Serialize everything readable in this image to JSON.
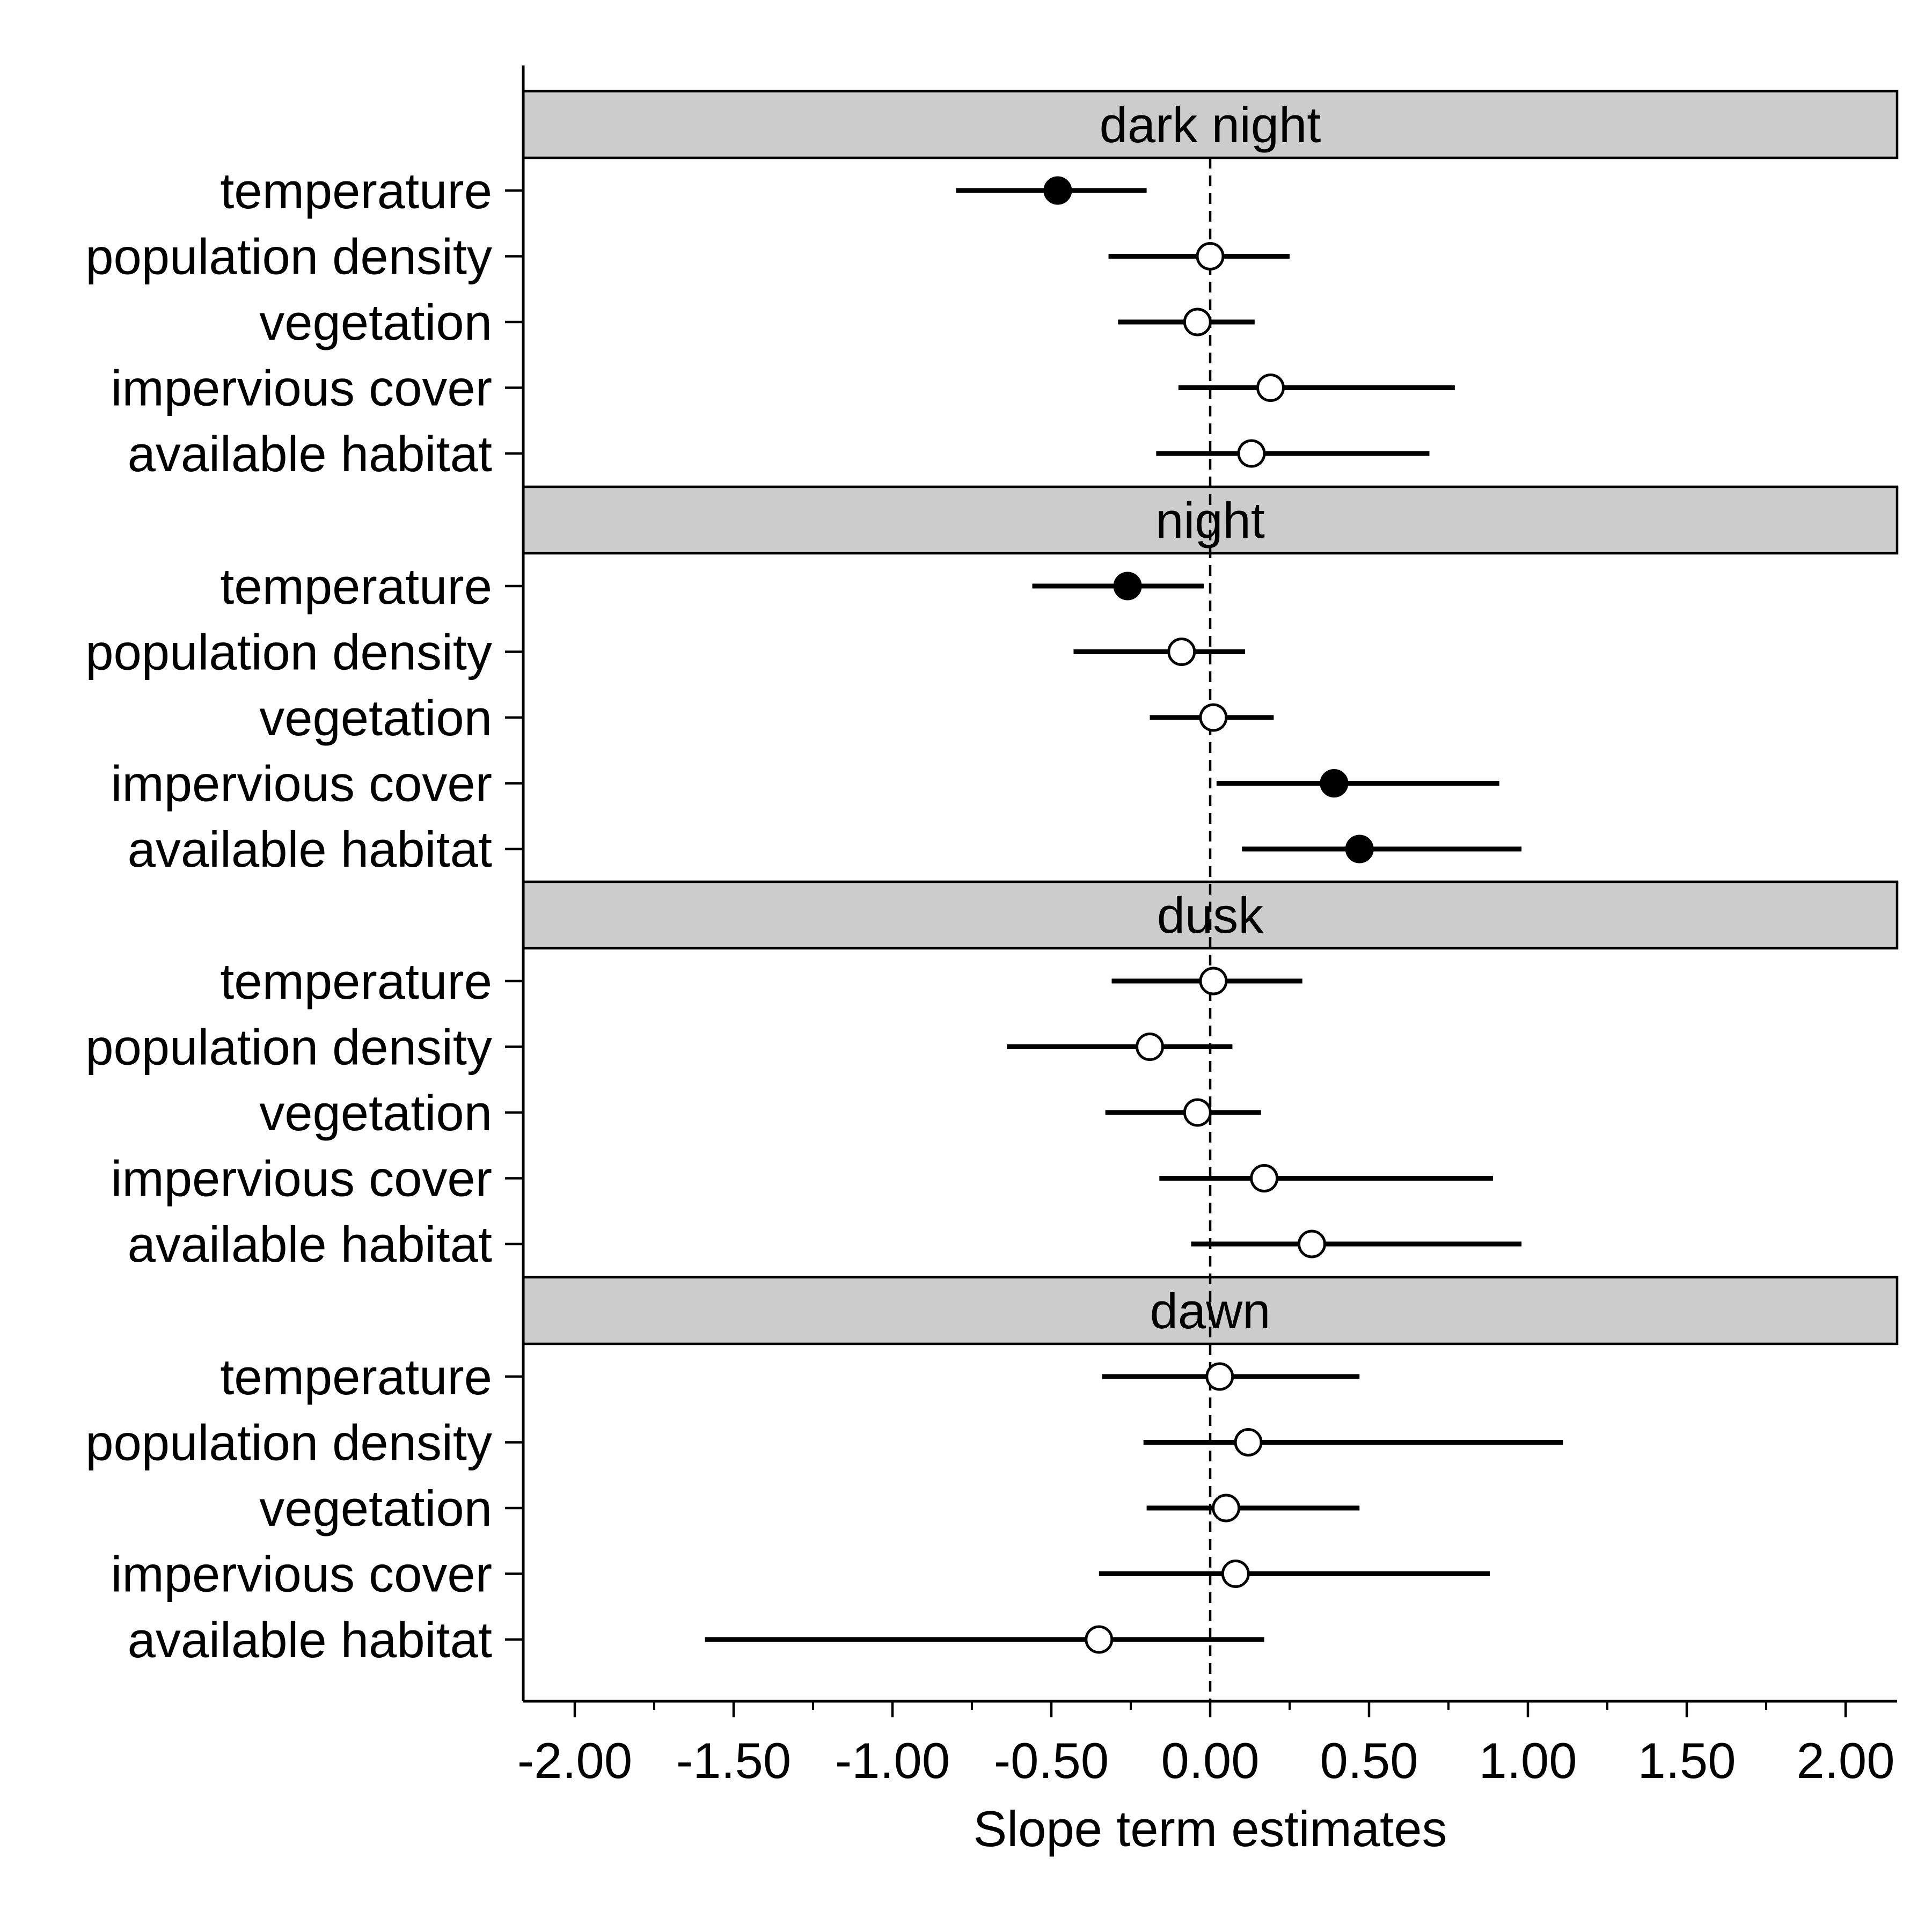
{
  "chart_data": {
    "type": "forest",
    "xlabel": "Slope term estimates",
    "xlim": [
      -2.15,
      2.15
    ],
    "x_ticks": [
      -2.0,
      -1.5,
      -1.0,
      -0.5,
      0.0,
      0.5,
      1.0,
      1.5,
      2.0
    ],
    "x_tick_labels": [
      "-2.00",
      "-1.50",
      "-1.00",
      "-0.50",
      "0.00",
      "0.50",
      "1.00",
      "1.50",
      "2.00"
    ],
    "x_minor_ticks": [
      -1.75,
      -1.25,
      -0.75,
      -0.25,
      0.25,
      0.75,
      1.25,
      1.75
    ],
    "reference_line": 0,
    "reference_line_style": "dashed",
    "marker_legend": {
      "filled": "interval excludes zero",
      "open": "interval includes zero"
    },
    "colors": {
      "strip_fill": "#cccccc",
      "line": "#000000",
      "open_marker_fill": "#ffffff",
      "filled_marker_fill": "#000000"
    },
    "panels": [
      {
        "title": "dark night",
        "terms": [
          {
            "label": "temperature",
            "estimate": -0.48,
            "lower": -0.8,
            "upper": -0.2,
            "filled": true
          },
          {
            "label": "population density",
            "estimate": 0.0,
            "lower": -0.32,
            "upper": 0.25,
            "filled": false
          },
          {
            "label": "vegetation",
            "estimate": -0.04,
            "lower": -0.29,
            "upper": 0.14,
            "filled": false
          },
          {
            "label": "impervious cover",
            "estimate": 0.19,
            "lower": -0.1,
            "upper": 0.77,
            "filled": false
          },
          {
            "label": "available habitat",
            "estimate": 0.13,
            "lower": -0.17,
            "upper": 0.69,
            "filled": false
          }
        ]
      },
      {
        "title": "night",
        "terms": [
          {
            "label": "temperature",
            "estimate": -0.26,
            "lower": -0.56,
            "upper": -0.02,
            "filled": true
          },
          {
            "label": "population density",
            "estimate": -0.09,
            "lower": -0.43,
            "upper": 0.11,
            "filled": false
          },
          {
            "label": "vegetation",
            "estimate": 0.01,
            "lower": -0.19,
            "upper": 0.2,
            "filled": false
          },
          {
            "label": "impervious cover",
            "estimate": 0.39,
            "lower": 0.02,
            "upper": 0.91,
            "filled": true
          },
          {
            "label": "available habitat",
            "estimate": 0.47,
            "lower": 0.1,
            "upper": 0.98,
            "filled": true
          }
        ]
      },
      {
        "title": "dusk",
        "terms": [
          {
            "label": "temperature",
            "estimate": 0.01,
            "lower": -0.31,
            "upper": 0.29,
            "filled": false
          },
          {
            "label": "population density",
            "estimate": -0.19,
            "lower": -0.64,
            "upper": 0.07,
            "filled": false
          },
          {
            "label": "vegetation",
            "estimate": -0.04,
            "lower": -0.33,
            "upper": 0.16,
            "filled": false
          },
          {
            "label": "impervious cover",
            "estimate": 0.17,
            "lower": -0.16,
            "upper": 0.89,
            "filled": false
          },
          {
            "label": "available habitat",
            "estimate": 0.32,
            "lower": -0.06,
            "upper": 0.98,
            "filled": false
          }
        ]
      },
      {
        "title": "dawn",
        "terms": [
          {
            "label": "temperature",
            "estimate": 0.03,
            "lower": -0.34,
            "upper": 0.47,
            "filled": false
          },
          {
            "label": "population density",
            "estimate": 0.12,
            "lower": -0.21,
            "upper": 1.11,
            "filled": false
          },
          {
            "label": "vegetation",
            "estimate": 0.05,
            "lower": -0.2,
            "upper": 0.47,
            "filled": false
          },
          {
            "label": "impervious cover",
            "estimate": 0.08,
            "lower": -0.35,
            "upper": 0.88,
            "filled": false
          },
          {
            "label": "available habitat",
            "estimate": -0.35,
            "lower": -1.59,
            "upper": 0.17,
            "filled": false
          }
        ]
      }
    ]
  }
}
